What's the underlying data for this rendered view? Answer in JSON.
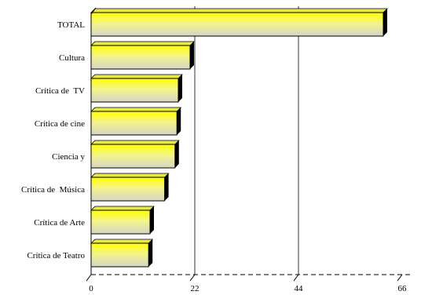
{
  "chart_data": {
    "type": "bar",
    "orientation": "horizontal",
    "categories": [
      "TOTAL",
      "Cultura",
      "Crítica de  TV",
      "Crítica de cine",
      "Ciencia y",
      "Crítica de  Música",
      "Crítica de Arte",
      "Crítica de Teatro"
    ],
    "values": [
      62,
      21,
      18.5,
      18.2,
      17.8,
      15.6,
      12.5,
      12.2
    ],
    "xlim": [
      0,
      66
    ],
    "x_ticks": [
      0,
      22,
      44,
      66
    ],
    "x_tick_labels": [
      "0",
      "22",
      "44",
      "66"
    ],
    "gridlines": [
      22,
      44
    ],
    "title": "",
    "xlabel": "",
    "ylabel": "",
    "colors": {
      "bar_top": "#ffff00",
      "bar_bottom": "#d4d4c8",
      "bar_edge": "#000000",
      "bar_shadow": "#000000",
      "grid": "#000000"
    }
  }
}
